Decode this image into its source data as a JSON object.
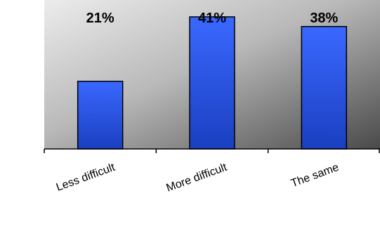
{
  "chart_data": {
    "type": "bar",
    "title": "",
    "xlabel": "",
    "ylabel": "",
    "categories": [
      "Less difficult",
      "More difficult",
      "The same"
    ],
    "values": [
      21,
      41,
      38
    ],
    "value_labels": [
      "21%",
      "41%",
      "38%"
    ],
    "ylim": [
      0,
      41
    ],
    "grid": false,
    "legend": "none",
    "colors": {
      "bar_top": "#3a68ff",
      "bar_bottom": "#1a3fc0",
      "bar_outline": "#000000",
      "plot_bg_light": "#ececec",
      "plot_bg_dark": "#4a4a4a"
    }
  }
}
